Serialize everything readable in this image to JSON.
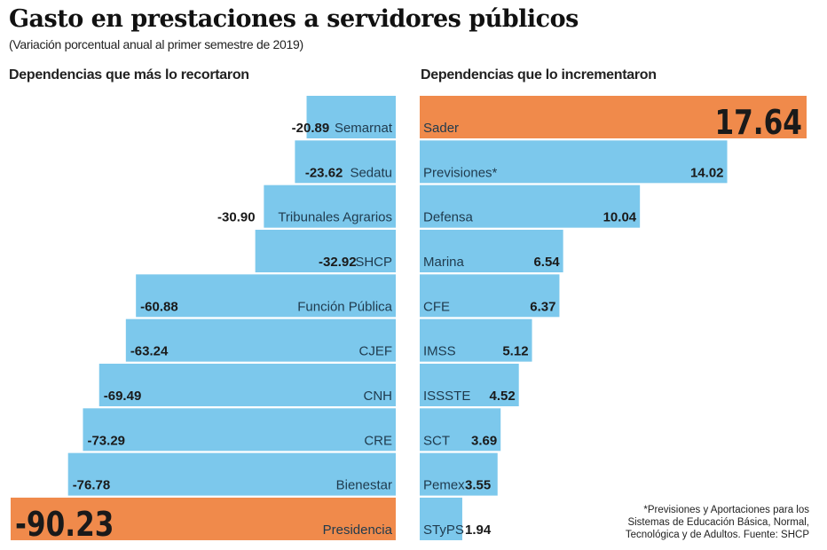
{
  "header": {
    "title": "Gasto en prestaciones a servidores públicos",
    "subtitle": "(Variación porcentual anual al primer semestre de 2019)"
  },
  "colors": {
    "bar": "#7CC8EC",
    "highlight": "#F08A4B",
    "text": "#1a1a1a",
    "label": "#1f3a4d"
  },
  "chart_data": [
    {
      "type": "bar",
      "orientation": "horizontal",
      "title": "Dependencias que más lo recortaron",
      "xlabel": "",
      "ylabel": "",
      "unit": "%",
      "categories": [
        "Semarnat",
        "Sedatu",
        "Tribunales Agrarios",
        "SHCP",
        "Función Pública",
        "CJEF",
        "CNH",
        "CRE",
        "Bienestar",
        "Presidencia"
      ],
      "values": [
        -20.89,
        -23.62,
        -30.9,
        -32.92,
        -60.88,
        -63.24,
        -69.49,
        -73.29,
        -76.78,
        -90.23
      ],
      "value_labels": [
        "-20.89",
        "-23.62",
        "-30.90",
        "-32.92",
        "-60.88",
        "-63.24",
        "-69.49",
        "-73.29",
        "-76.78",
        "-90.23"
      ],
      "highlight_index": 9,
      "xlim": [
        -90.23,
        0
      ],
      "grid": false,
      "legend": "none"
    },
    {
      "type": "bar",
      "orientation": "horizontal",
      "title": "Dependencias que lo incrementaron",
      "xlabel": "",
      "ylabel": "",
      "unit": "%",
      "categories": [
        "Sader",
        "Previsiones*",
        "Defensa",
        "Marina",
        "CFE",
        "IMSS",
        "ISSSTE",
        "SCT",
        "Pemex",
        "STyPS"
      ],
      "values": [
        17.64,
        14.02,
        10.04,
        6.54,
        6.37,
        5.12,
        4.52,
        3.69,
        3.55,
        1.94
      ],
      "value_labels": [
        "17.64",
        "14.02",
        "10.04",
        "6.54",
        "6.37",
        "5.12",
        "4.52",
        "3.69",
        "3.55",
        "1.94"
      ],
      "highlight_index": 0,
      "xlim": [
        0,
        17.64
      ],
      "grid": false,
      "legend": "none"
    }
  ],
  "footnote": {
    "lines": [
      "*Previsiones y Aportaciones para los",
      "Sistemas de Educación Básica, Normal,",
      "Tecnológica y de Adultos. Fuente: SHCP"
    ]
  }
}
